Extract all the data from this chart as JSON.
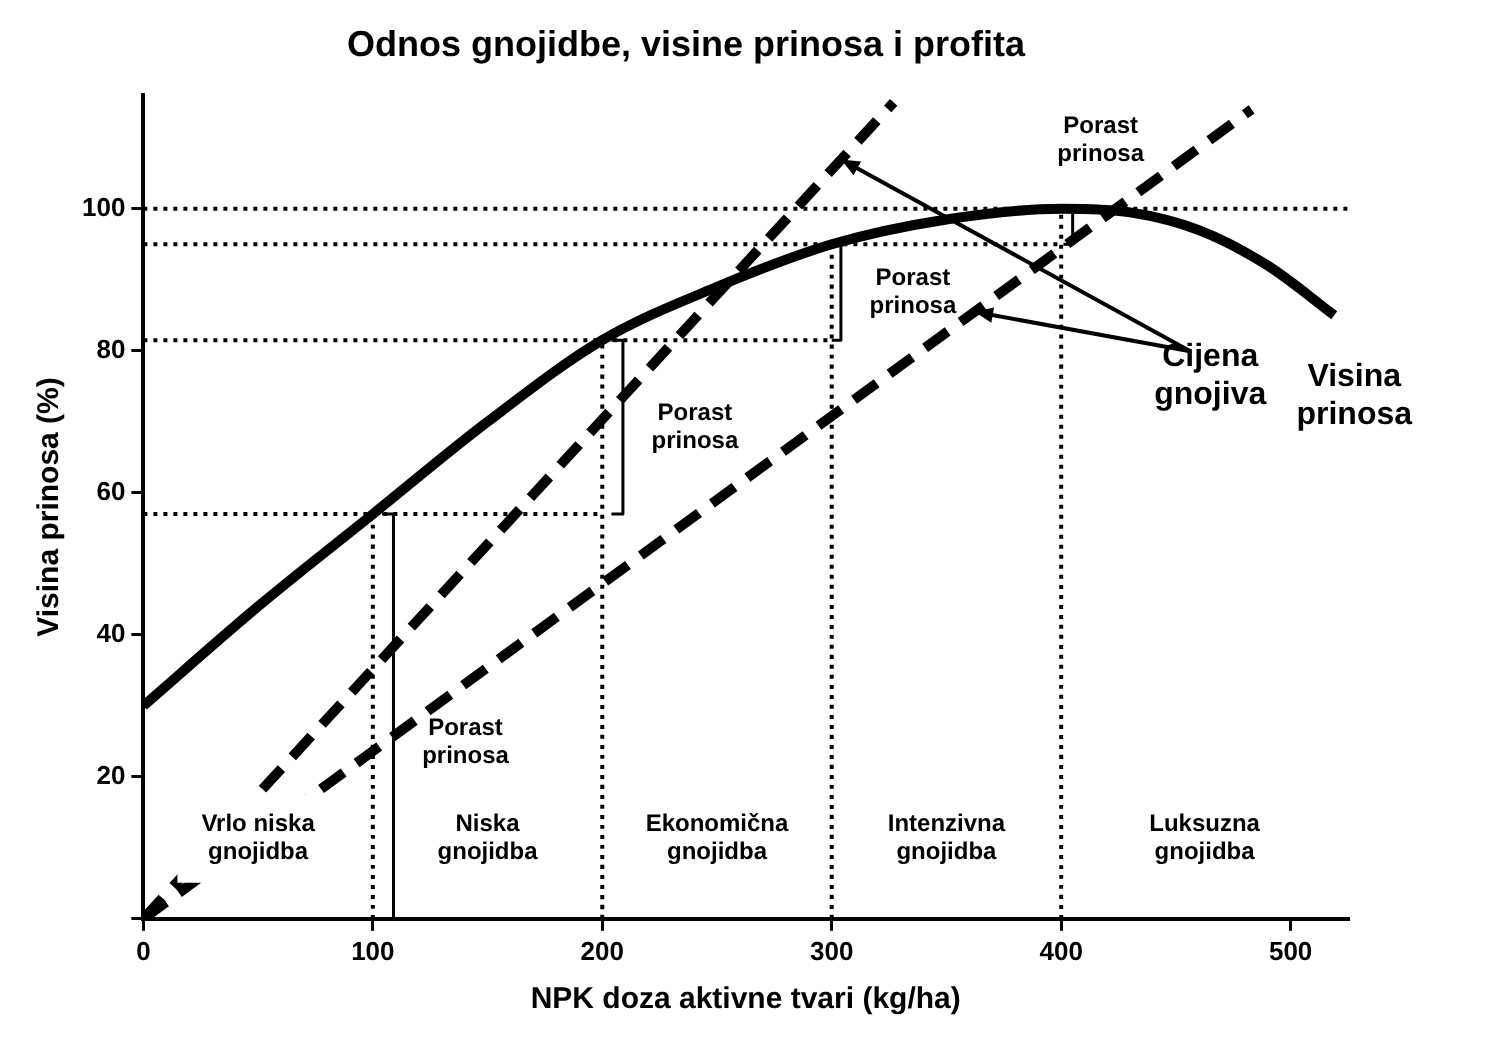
{
  "chart_data": {
    "type": "line",
    "title": "Odnos gnojidbe, visine prinosa i profita",
    "xlabel": "NPK doza aktivne tvari (kg/ha)",
    "ylabel": "Visina prinosa (%)",
    "xlim": [
      0,
      525
    ],
    "xticks": [
      0,
      100,
      200,
      300,
      400,
      500
    ],
    "ylim": [
      0,
      116
    ],
    "yticks": [
      {
        "value": 0,
        "label": null
      },
      20,
      40,
      60,
      80,
      100
    ],
    "grid": false,
    "legend": false,
    "marker": "none",
    "series": [
      {
        "line_style": "dotted",
        "color": "#000000",
        "x": [
          0,
          525
        ],
        "values": [
          100,
          100
        ]
      },
      {
        "line_style": "dotted",
        "color": "#000000",
        "x": [
          0,
          400
        ],
        "values": [
          95,
          95
        ]
      },
      {
        "line_style": "dotted",
        "color": "#000000",
        "x": [
          0,
          300
        ],
        "values": [
          81.5,
          81.5
        ]
      },
      {
        "line_style": "dotted",
        "color": "#000000",
        "x": [
          0,
          200
        ],
        "values": [
          57,
          57
        ]
      },
      {
        "line_style": "dotted",
        "color": "#000000",
        "x": [
          100,
          100
        ],
        "values": [
          0,
          57
        ]
      },
      {
        "line_style": "dotted",
        "color": "#000000",
        "x": [
          200,
          200
        ],
        "values": [
          0,
          81.5
        ]
      },
      {
        "line_style": "dotted",
        "color": "#000000",
        "x": [
          300,
          300
        ],
        "values": [
          0,
          95
        ]
      },
      {
        "line_style": "dotted",
        "color": "#000000",
        "x": [
          400,
          400
        ],
        "values": [
          0,
          100
        ]
      },
      {
        "line_style": "solid",
        "color": "#000000",
        "x": [
          104,
          109,
          109,
          104
        ],
        "values": [
          0,
          0,
          57,
          57
        ]
      },
      {
        "line_style": "solid",
        "color": "#000000",
        "x": [
          204,
          209,
          209,
          204
        ],
        "values": [
          57,
          57,
          81.5,
          81.5
        ]
      },
      {
        "line_style": "solid",
        "color": "#000000",
        "x": [
          300,
          304,
          304,
          300
        ],
        "values": [
          81.5,
          81.5,
          95,
          95
        ]
      },
      {
        "line_style": "solid",
        "color": "#000000",
        "x": [
          401,
          405,
          405,
          401
        ],
        "values": [
          95,
          95,
          100,
          100
        ]
      },
      {
        "name": "Cijena gnojiva",
        "line_style": "dashed",
        "color": "#000000",
        "x": [
          0,
          327
        ],
        "values": [
          0,
          115
        ]
      },
      {
        "line_style": "dashed",
        "color": "#000000",
        "x": [
          0,
          483
        ],
        "values": [
          0,
          114
        ]
      },
      {
        "name": "Visina prinosa",
        "line_style": "solid",
        "color": "#000000",
        "x": [
          0,
          50,
          100,
          150,
          200,
          250,
          300,
          350,
          400,
          430,
          460,
          490,
          519
        ],
        "values": [
          30,
          44,
          57,
          70,
          81.5,
          89,
          95,
          98.5,
          100,
          99.5,
          97,
          92,
          85
        ]
      }
    ],
    "annotations": [
      "Porast prinosa",
      "Porast prinosa",
      "Porast prinosa",
      "Porast prinosa",
      "Vrlo niska gnojidba",
      "Niska gnojidba",
      "Ekonomična gnojidba",
      "Intenzivna gnojidba",
      "Luksuzna gnojidba"
    ]
  }
}
